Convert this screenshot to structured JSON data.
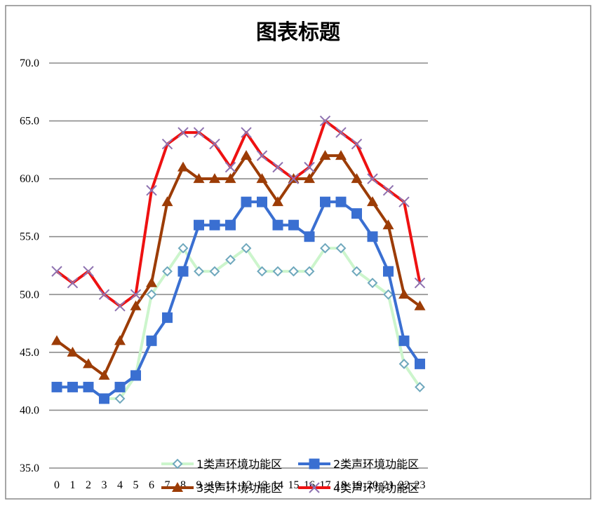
{
  "chart_data": {
    "type": "line",
    "title": "图表标题",
    "xlabel": "",
    "ylabel": "",
    "categories": [
      "0",
      "1",
      "2",
      "3",
      "4",
      "5",
      "6",
      "7",
      "8",
      "9",
      "10",
      "11",
      "12",
      "13",
      "14",
      "15",
      "16",
      "17",
      "18",
      "19",
      "20",
      "21",
      "22",
      "23"
    ],
    "ylim": [
      35,
      70
    ],
    "yticks": [
      "35.0",
      "40.0",
      "45.0",
      "50.0",
      "55.0",
      "60.0",
      "65.0",
      "70.0"
    ],
    "grid": true,
    "legend_position": "bottom",
    "series": [
      {
        "name": "1类声环境功能区",
        "color": "#ccf5cc",
        "marker": "diamond",
        "marker_color": "#6fa8bd",
        "values": [
          42,
          42,
          42,
          41,
          41,
          43,
          50,
          52,
          54,
          52,
          52,
          53,
          54,
          52,
          52,
          52,
          52,
          54,
          54,
          52,
          51,
          50,
          44,
          42
        ]
      },
      {
        "name": "2类声环境功能区",
        "color": "#3a6fd1",
        "marker": "square",
        "marker_color": "#3a6fd1",
        "values": [
          42,
          42,
          42,
          41,
          42,
          43,
          46,
          48,
          52,
          56,
          56,
          56,
          58,
          58,
          56,
          56,
          55,
          58,
          58,
          57,
          55,
          52,
          46,
          44
        ]
      },
      {
        "name": "3类声环境功能区",
        "color": "#9c3c06",
        "marker": "triangle",
        "marker_color": "#9c3c06",
        "values": [
          46,
          45,
          44,
          43,
          46,
          49,
          51,
          58,
          61,
          60,
          60,
          60,
          62,
          60,
          58,
          60,
          60,
          62,
          62,
          60,
          58,
          56,
          50,
          49
        ]
      },
      {
        "name": "4类声环境功能区",
        "color": "#ee1111",
        "marker": "x",
        "marker_color": "#8e72b0",
        "values": [
          52,
          51,
          52,
          50,
          49,
          50,
          59,
          63,
          64,
          64,
          63,
          61,
          64,
          62,
          61,
          60,
          61,
          65,
          64,
          63,
          60,
          59,
          58,
          51
        ]
      }
    ]
  }
}
